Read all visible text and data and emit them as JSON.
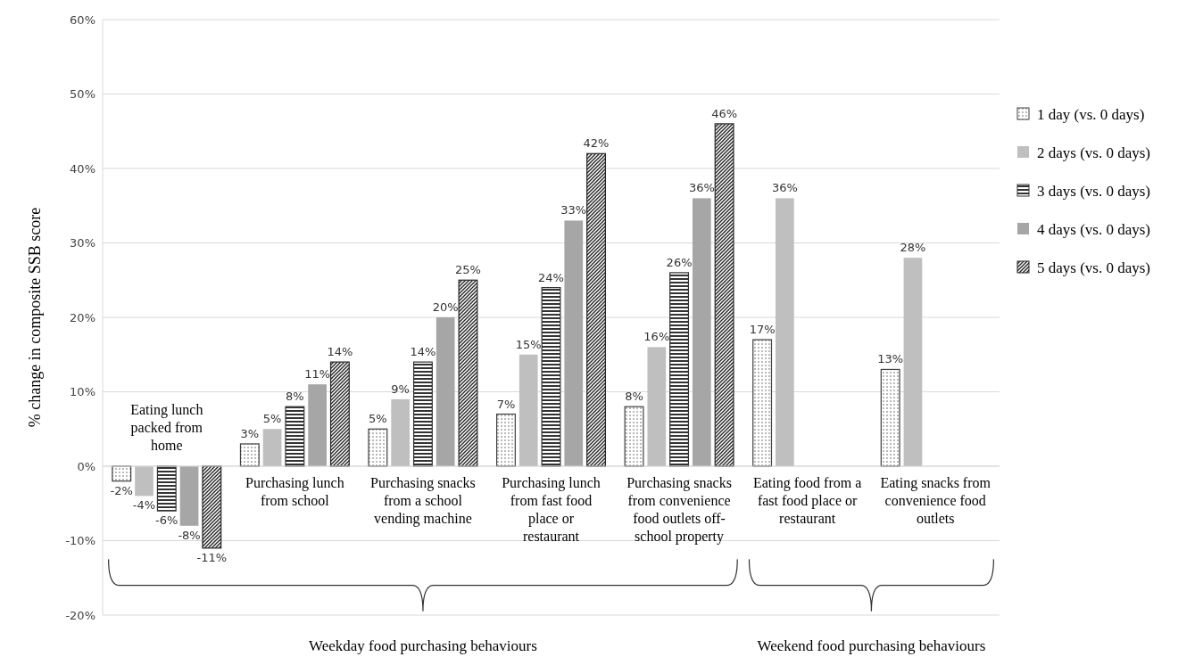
{
  "chart_data": {
    "type": "bar",
    "ylabel": "% change in composite SSB score",
    "categories": [
      "Eating lunch packed from home",
      "Purchasing lunch from school",
      "Purchasing snacks from a school vending machine",
      "Purchasing lunch from fast food place or restaurant",
      "Purchasing snacks from convenience food outlets off-school property",
      "Eating food from a fast food place or restaurant",
      "Eating snacks from convenience food outlets"
    ],
    "series": [
      {
        "name": "1 day (vs. 0 days)",
        "color": "#404040",
        "values": [
          -2,
          3,
          5,
          7,
          8,
          17,
          13
        ],
        "value_labels": [
          "-2%",
          "3%",
          "5%",
          "7%",
          "8%",
          "17%",
          "13%"
        ]
      },
      {
        "name": "2 days (vs. 0 days)",
        "color": "#bfbfbf",
        "values": [
          -4,
          5,
          9,
          15,
          16,
          36,
          28
        ],
        "value_labels": [
          "-4%",
          "5%",
          "9%",
          "15%",
          "16%",
          "36%",
          "28%"
        ]
      },
      {
        "name": "3 days (vs. 0 days)",
        "color": "#333333",
        "values": [
          -6,
          8,
          14,
          24,
          26,
          null,
          null
        ],
        "value_labels": [
          "-6%",
          "8%",
          "14%",
          "24%",
          "26%",
          null,
          null
        ]
      },
      {
        "name": "4 days (vs. 0 days)",
        "color": "#a6a6a6",
        "values": [
          -8,
          11,
          20,
          33,
          36,
          null,
          null
        ],
        "value_labels": [
          "-8%",
          "11%",
          "20%",
          "33%",
          "36%",
          null,
          null
        ]
      },
      {
        "name": "5 days (vs. 0 days)",
        "color": "#262626",
        "values": [
          -11,
          14,
          25,
          42,
          46,
          null,
          null
        ],
        "value_labels": [
          "-11%",
          "14%",
          "25%",
          "42%",
          "46%",
          null,
          null
        ]
      }
    ],
    "ylim": [
      -20,
      60
    ],
    "yticks": [
      {
        "value": -20,
        "label": "-20%"
      },
      {
        "value": -10,
        "label": "-10%"
      },
      {
        "value": 0,
        "label": "0%"
      },
      {
        "value": 10,
        "label": "10%"
      },
      {
        "value": 20,
        "label": "20%"
      },
      {
        "value": 30,
        "label": "30%"
      },
      {
        "value": 40,
        "label": "40%"
      },
      {
        "value": 50,
        "label": "50%"
      },
      {
        "value": 60,
        "label": "60%"
      }
    ],
    "grid": "y",
    "legend": "right",
    "annotations": [
      "Weekday food purchasing behaviours",
      "Weekend food purchasing behaviours"
    ]
  }
}
